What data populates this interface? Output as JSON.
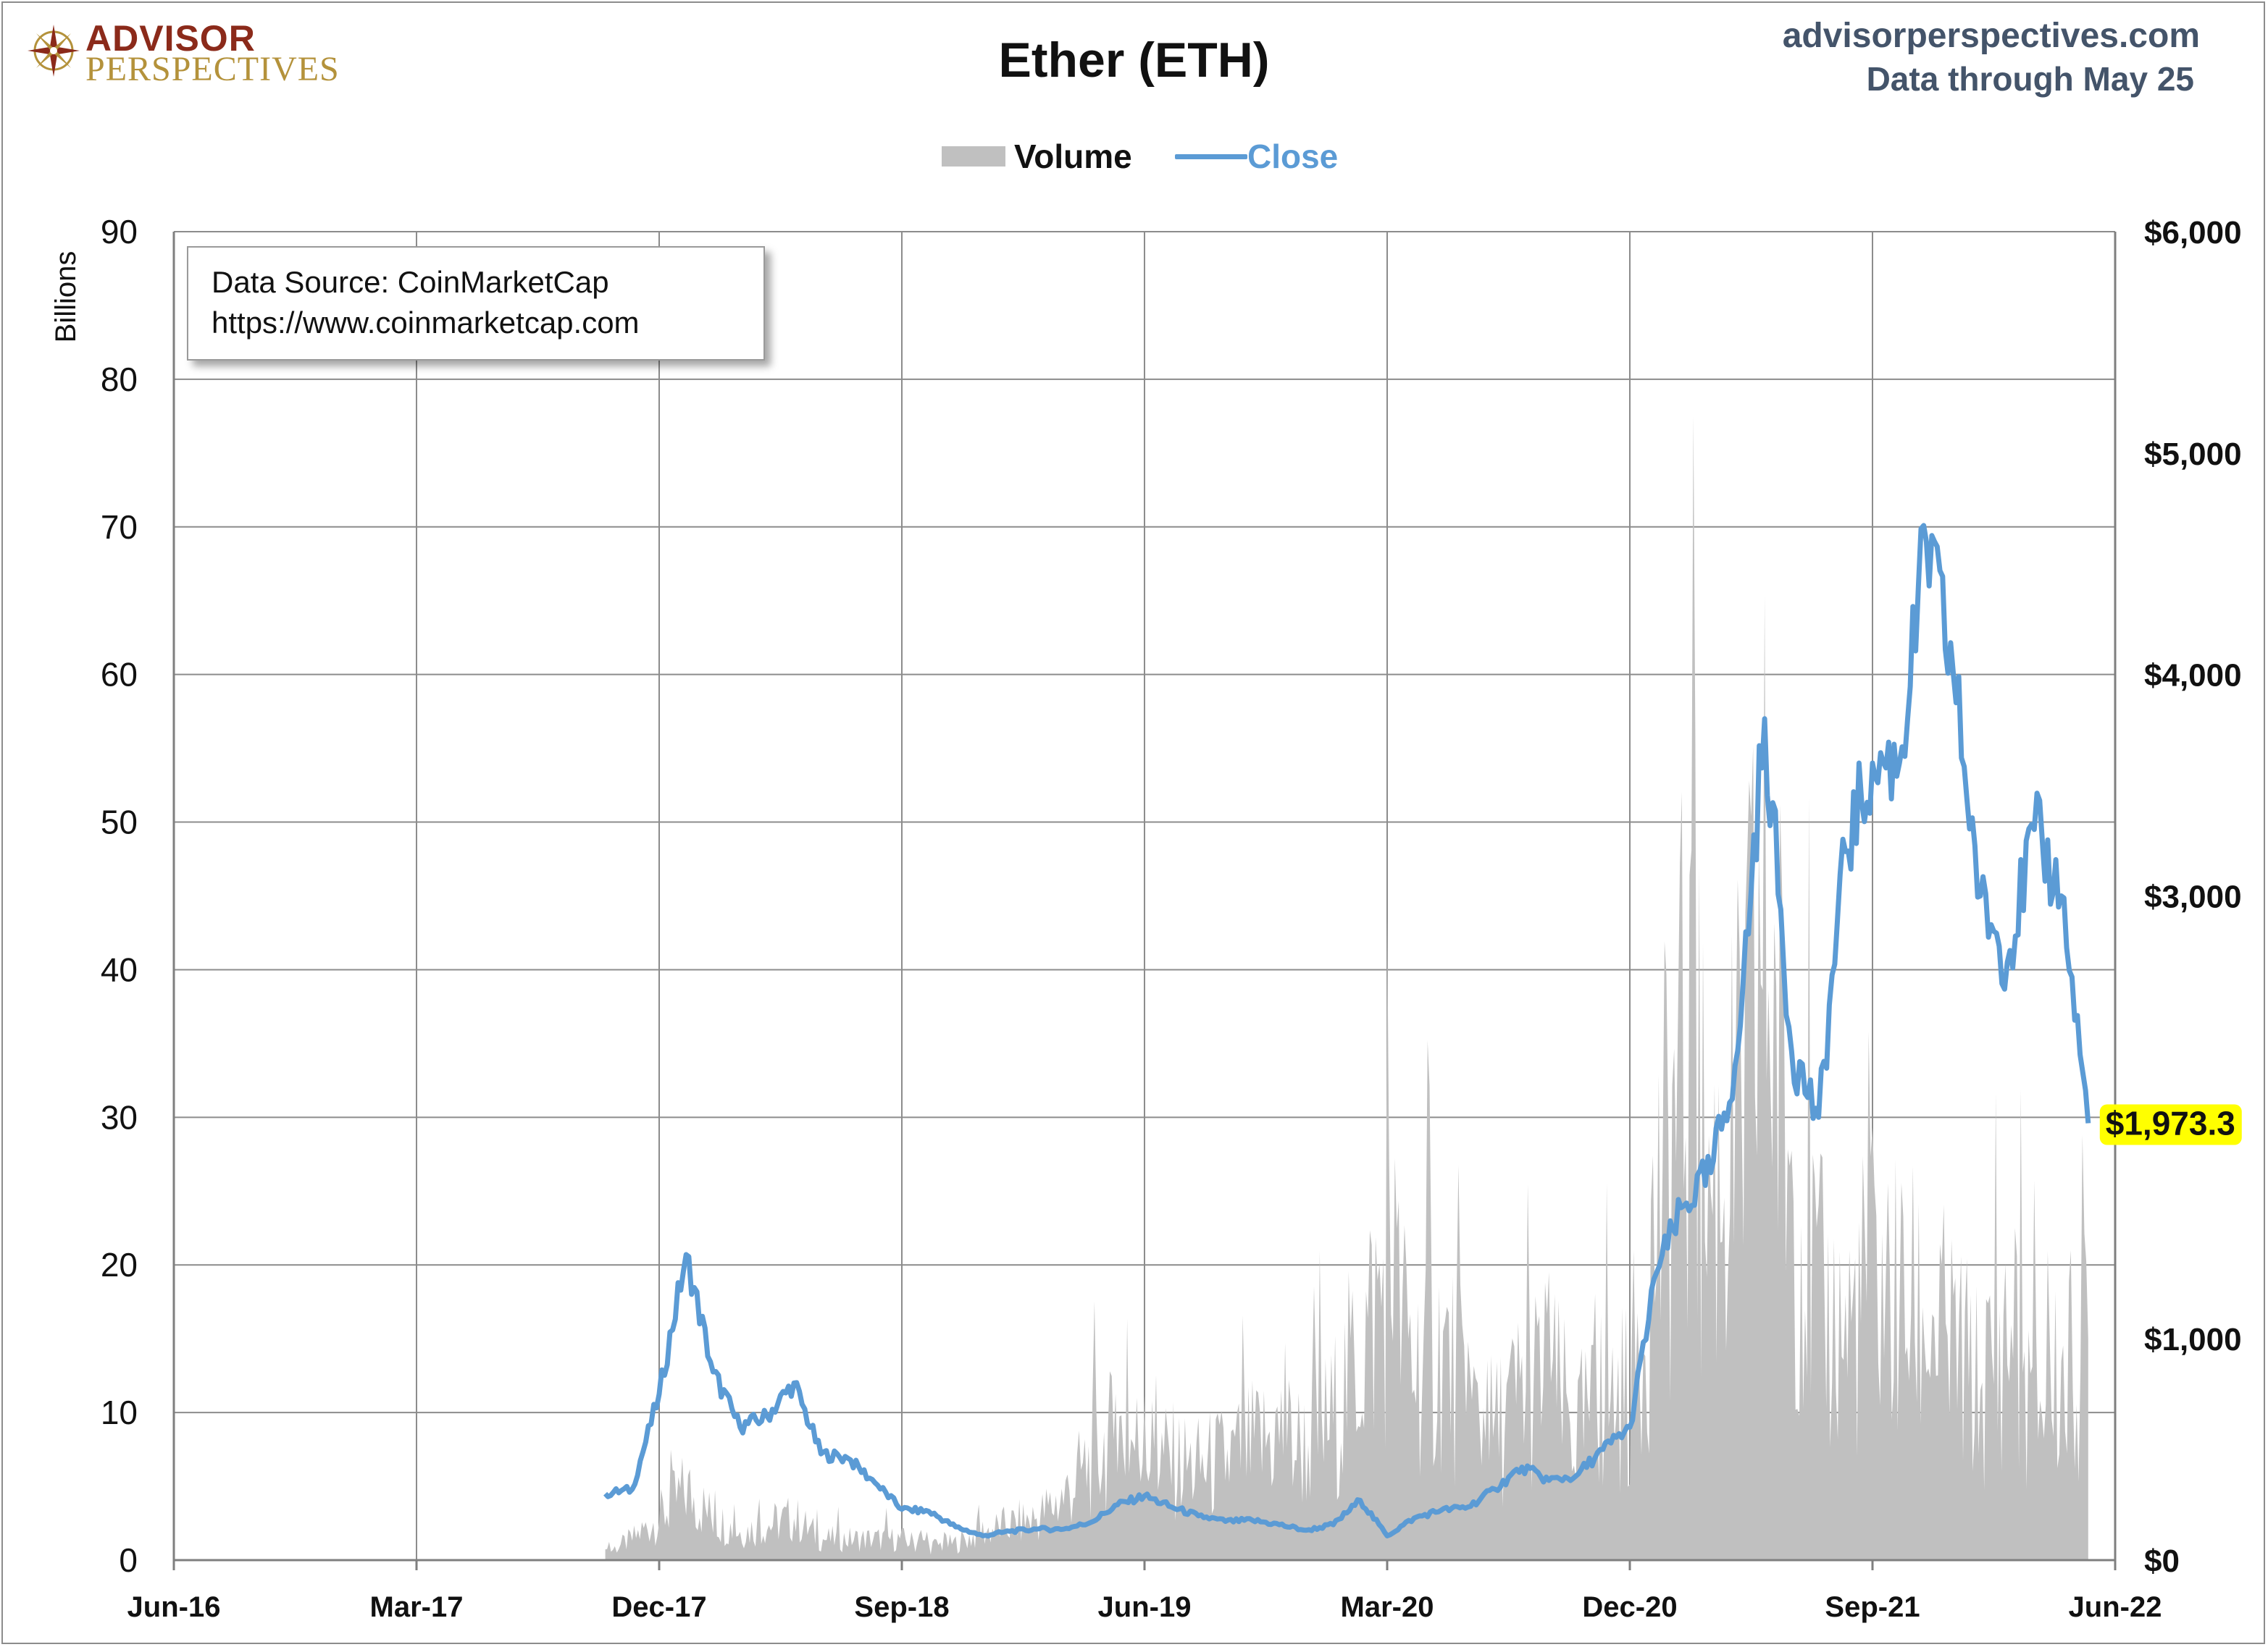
{
  "header": {
    "logo_top": "ADVISOR",
    "logo_bottom": "PERSPECTIVES",
    "site": "advisorperspectives.com",
    "data_through": "Data through May 25"
  },
  "source_box": {
    "line1": "Data Source: CoinMarketCap",
    "line2": "https://www.coinmarketcap.com"
  },
  "colors": {
    "volume": "#c0c0c0",
    "close": "#5b9bd5",
    "grid": "#8c8c8c",
    "highlight": "#ffff00",
    "logo_red": "#8b2a1a",
    "logo_gold": "#b4923b",
    "site_text": "#44546a"
  },
  "chart_data": {
    "type": "area",
    "title": "Ether (ETH)",
    "legend_position": "top-center",
    "grid": true,
    "x_tick_labels": [
      "Jun-16",
      "Mar-17",
      "Dec-17",
      "Sep-18",
      "Jun-19",
      "Mar-20",
      "Dec-20",
      "Sep-21",
      "Jun-22"
    ],
    "x_range": [
      "2016-06",
      "2022-06"
    ],
    "left_axis": {
      "label": "Billions",
      "range": [
        0,
        90
      ],
      "ticks": [
        "0",
        "10",
        "20",
        "30",
        "40",
        "50",
        "60",
        "70",
        "80",
        "90"
      ]
    },
    "right_axis": {
      "label": "",
      "range": [
        0,
        6000
      ],
      "ticks": [
        "$0",
        "$1,000",
        "$2,000",
        "$3,000",
        "$4,000",
        "$5,000",
        "$6,000"
      ]
    },
    "last_value_label": "$1,973.3",
    "series": [
      {
        "name": "Volume",
        "axis": "left",
        "unit": "Billions",
        "x": [
          "2017-10",
          "2017-11",
          "2017-12",
          "2018-01",
          "2018-02",
          "2018-03",
          "2018-04",
          "2018-05",
          "2018-06",
          "2018-07",
          "2018-08",
          "2018-09",
          "2018-10",
          "2018-11",
          "2018-12",
          "2019-01",
          "2019-02",
          "2019-03",
          "2019-04",
          "2019-05",
          "2019-06",
          "2019-07",
          "2019-08",
          "2019-09",
          "2019-10",
          "2019-11",
          "2019-12",
          "2020-01",
          "2020-02",
          "2020-03",
          "2020-04",
          "2020-05",
          "2020-06",
          "2020-07",
          "2020-08",
          "2020-09",
          "2020-10",
          "2020-11",
          "2020-12",
          "2021-01",
          "2021-02",
          "2021-03",
          "2021-04",
          "2021-05",
          "2021-06",
          "2021-07",
          "2021-08",
          "2021-09",
          "2021-10",
          "2021-11",
          "2021-12",
          "2022-01",
          "2022-02",
          "2022-03",
          "2022-04",
          "2022-05"
        ],
        "values": [
          0.5,
          1.5,
          3,
          5,
          3,
          2,
          2.5,
          3,
          1.5,
          1.5,
          1.5,
          1.5,
          1,
          1.2,
          2,
          2.5,
          3,
          4.5,
          7,
          9,
          8,
          7,
          6.5,
          7,
          8,
          9,
          8,
          10,
          15,
          20,
          14,
          15,
          11,
          9,
          12,
          13,
          9,
          11,
          12,
          24,
          35,
          26,
          30,
          45,
          28,
          18,
          16,
          20,
          18,
          17,
          15,
          12,
          16,
          11,
          13,
          15
        ]
      },
      {
        "name": "Close",
        "axis": "right",
        "unit": "USD",
        "x": [
          "2017-10",
          "2017-11",
          "2017-12",
          "2018-01",
          "2018-02",
          "2018-03",
          "2018-04",
          "2018-05",
          "2018-06",
          "2018-07",
          "2018-08",
          "2018-09",
          "2018-10",
          "2018-11",
          "2018-12",
          "2019-01",
          "2019-02",
          "2019-03",
          "2019-04",
          "2019-05",
          "2019-06",
          "2019-07",
          "2019-08",
          "2019-09",
          "2019-10",
          "2019-11",
          "2019-12",
          "2020-01",
          "2020-02",
          "2020-03",
          "2020-04",
          "2020-05",
          "2020-06",
          "2020-07",
          "2020-08",
          "2020-09",
          "2020-10",
          "2020-11",
          "2020-12",
          "2021-01",
          "2021-02",
          "2021-03",
          "2021-04",
          "2021-05",
          "2021-06",
          "2021-07",
          "2021-08",
          "2021-09",
          "2021-10",
          "2021-11",
          "2021-12",
          "2022-01",
          "2022-02",
          "2022-03",
          "2022-04",
          "2022-05"
        ],
        "values": [
          300,
          320,
          750,
          1380,
          850,
          600,
          650,
          800,
          480,
          460,
          350,
          230,
          220,
          150,
          110,
          130,
          140,
          140,
          170,
          250,
          290,
          240,
          200,
          175,
          180,
          160,
          135,
          160,
          270,
          110,
          190,
          225,
          240,
          320,
          420,
          360,
          380,
          500,
          600,
          1300,
          1600,
          1750,
          2300,
          3800,
          2300,
          2000,
          3200,
          3600,
          3600,
          4600,
          4000,
          3000,
          2700,
          3300,
          3000,
          1973.3
        ]
      }
    ]
  }
}
